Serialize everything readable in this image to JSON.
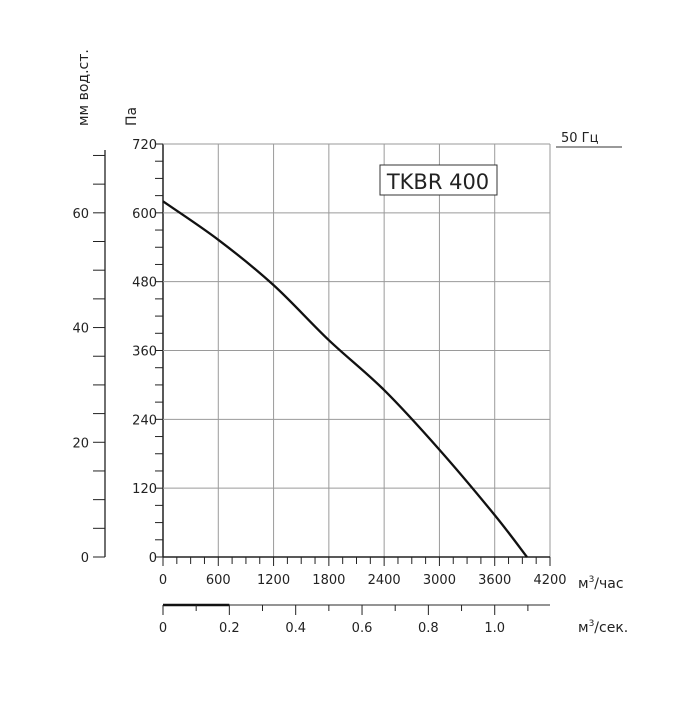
{
  "chart_data": {
    "type": "line",
    "title": "TKBR 400",
    "frequency_label": "50 Гц",
    "ylabel": "Па",
    "ylabel_secondary": "мм вод.ст.",
    "xlabel": "м³/час",
    "xlabel_secondary": "м³/сек.",
    "xlim": [
      0,
      4200
    ],
    "ylim": [
      0,
      720
    ],
    "x_ticks": [
      "0",
      "600",
      "1200",
      "1800",
      "2400",
      "3000",
      "3600",
      "4200"
    ],
    "y_ticks": [
      "0",
      "120",
      "240",
      "360",
      "480",
      "600",
      "720"
    ],
    "y2_ticks": [
      "0",
      "20",
      "40",
      "60"
    ],
    "x2_ticks": [
      "0",
      "0.2",
      "0.4",
      "0.6",
      "0.8",
      "1.0"
    ],
    "grid": true,
    "colors": {
      "curve": "#111111",
      "grid": "#9a9a9a"
    },
    "series": [
      {
        "x": [
          0,
          600,
          1200,
          1800,
          2400,
          3000,
          3600,
          3950
        ],
        "y": [
          620,
          553,
          474,
          378,
          291,
          187,
          73,
          0
        ]
      }
    ]
  }
}
